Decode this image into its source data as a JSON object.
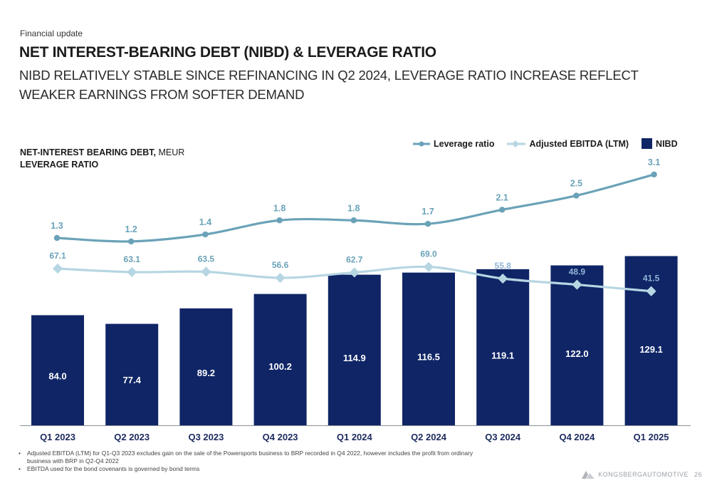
{
  "header": {
    "section": "Financial update",
    "title": "NET INTEREST-BEARING DEBT (NIBD) & LEVERAGE RATIO",
    "subtitle": "NIBD RELATIVELY STABLE SINCE REFINANCING IN Q2 2024, LEVERAGE RATIO INCREASE REFLECT WEAKER EARNINGS FROM SOFTER DEMAND"
  },
  "axis_title": {
    "line1_bold": "NET-INTEREST BEARING DEBT,",
    "line1_unit": " MEUR",
    "line2": "LEVERAGE RATIO"
  },
  "legend": {
    "leverage": "Leverage ratio",
    "ebitda": "Adjusted EBITDA (LTM)",
    "nibd": "NIBD"
  },
  "colors": {
    "nibd_bar": "#0f2566",
    "leverage_line": "#6aa2b8",
    "ebitda_line": "#b6d6e2"
  },
  "chart_data": {
    "type": "bar",
    "categories": [
      "Q1 2023",
      "Q2 2023",
      "Q3 2023",
      "Q4 2023",
      "Q1 2024",
      "Q2 2024",
      "Q3 2024",
      "Q4 2024",
      "Q1 2025"
    ],
    "series": [
      {
        "name": "NIBD",
        "type": "bar",
        "values": [
          84.0,
          77.4,
          89.2,
          100.2,
          114.9,
          116.5,
          119.1,
          122.0,
          129.1
        ]
      },
      {
        "name": "Adjusted EBITDA (LTM)",
        "type": "line",
        "values": [
          67.1,
          63.1,
          63.5,
          56.6,
          62.7,
          69.0,
          55.8,
          48.9,
          41.5
        ]
      },
      {
        "name": "Leverage ratio",
        "type": "line",
        "values": [
          1.3,
          1.2,
          1.4,
          1.8,
          1.8,
          1.7,
          2.1,
          2.5,
          3.1
        ]
      }
    ],
    "labels": {
      "nibd": [
        "84.0",
        "77.4",
        "89.2",
        "100.2",
        "114.9",
        "116.5",
        "119.1",
        "122.0",
        "129.1"
      ],
      "ebitda": [
        "67.1",
        "63.1",
        "63.5",
        "56.6",
        "62.7",
        "69.0",
        "55.8",
        "48.9",
        "41.5"
      ],
      "leverage": [
        "1.3",
        "1.2",
        "1.4",
        "1.8",
        "1.8",
        "1.7",
        "2.1",
        "2.5",
        "3.1"
      ]
    },
    "legend_position": "top-right",
    "grid": false
  },
  "footnotes": [
    "Adjusted EBITDA (LTM) for Q1-Q3 2023 excludes gain on the sale of the Powersports business to BRP recorded in Q4 2022, however includes the profit from ordinary business with BRP in Q2-Q4 2022",
    "EBITDA used for the bond covenants is governed by bond terms"
  ],
  "footer": {
    "brand_bold": "KONGSBERG",
    "brand_light": " AUTOMOTIVE",
    "page": "26"
  }
}
